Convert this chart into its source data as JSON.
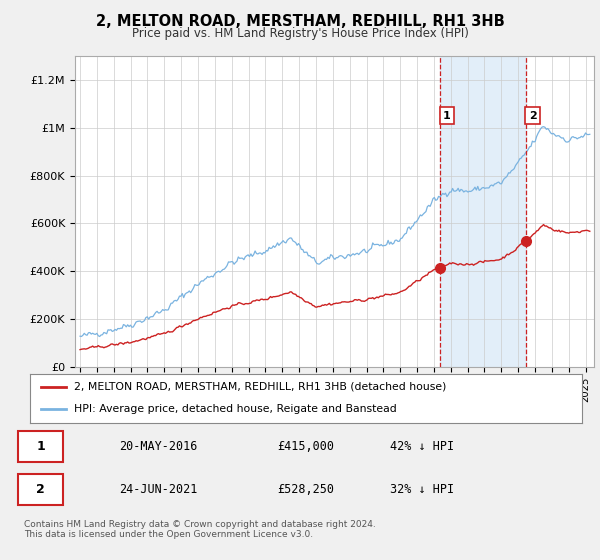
{
  "title": "2, MELTON ROAD, MERSTHAM, REDHILL, RH1 3HB",
  "subtitle": "Price paid vs. HM Land Registry's House Price Index (HPI)",
  "ylabel_ticks": [
    "£0",
    "£200K",
    "£400K",
    "£600K",
    "£800K",
    "£1M",
    "£1.2M"
  ],
  "ytick_values": [
    0,
    200000,
    400000,
    600000,
    800000,
    1000000,
    1200000
  ],
  "ylim": [
    0,
    1300000
  ],
  "xlim_start": 1994.7,
  "xlim_end": 2025.5,
  "sale1_x": 2016.38,
  "sale1_y": 415000,
  "sale1_label": "1",
  "sale2_x": 2021.48,
  "sale2_y": 528250,
  "sale2_label": "2",
  "hpi_color": "#7ab3e0",
  "hpi_fill_color": "#d6e8f7",
  "sale_color": "#cc2222",
  "legend_house": "2, MELTON ROAD, MERSTHAM, REDHILL, RH1 3HB (detached house)",
  "legend_hpi": "HPI: Average price, detached house, Reigate and Banstead",
  "table_row1": [
    "1",
    "20-MAY-2016",
    "£415,000",
    "42% ↓ HPI"
  ],
  "table_row2": [
    "2",
    "24-JUN-2021",
    "£528,250",
    "32% ↓ HPI"
  ],
  "footer": "Contains HM Land Registry data © Crown copyright and database right 2024.\nThis data is licensed under the Open Government Licence v3.0.",
  "background_color": "#f0f0f0",
  "plot_bg_color": "#ffffff"
}
